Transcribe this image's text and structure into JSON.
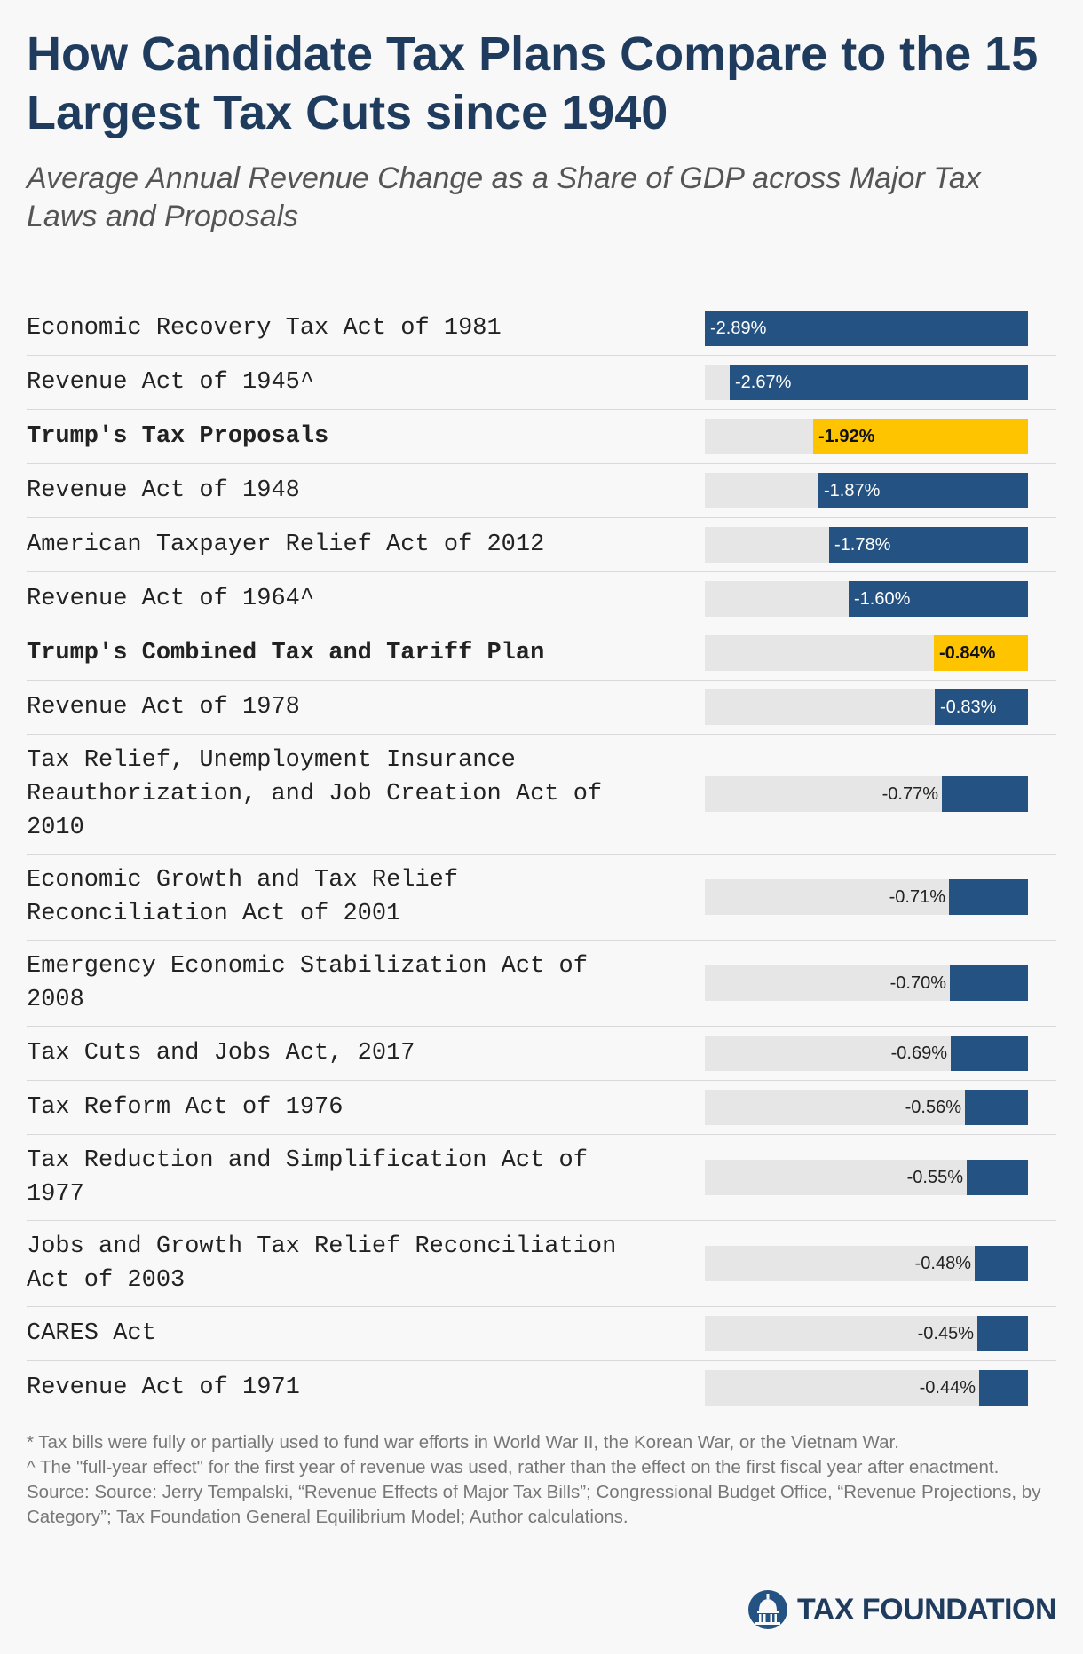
{
  "title": "How Candidate Tax Plans Compare to the 15 Largest Tax Cuts since 1940",
  "subtitle": "Average Annual Revenue Change as a Share of GDP across Major Tax Laws and Proposals",
  "colors": {
    "bar": "#245282",
    "highlight": "#ffc400",
    "track": "#e6e6e6",
    "title": "#1f3c5e"
  },
  "chart_data": {
    "type": "bar",
    "orientation": "horizontal",
    "xlim": [
      -2.89,
      0
    ],
    "categories": [
      "Economic Recovery Tax Act of 1981",
      "Revenue Act of 1945^",
      "Trump's Tax Proposals",
      "Revenue Act of 1948",
      "American Taxpayer Relief Act of 2012",
      "Revenue Act of 1964^",
      "Trump's Combined Tax and Tariff Plan",
      "Revenue Act of 1978",
      "Tax Relief, Unemployment Insurance Reauthorization, and Job Creation Act of 2010",
      "Economic Growth and Tax Relief Reconciliation Act of 2001",
      "Emergency Economic Stabilization Act of 2008",
      "Tax Cuts and Jobs Act, 2017",
      "Tax Reform Act of 1976",
      "Tax Reduction and Simplification Act of 1977",
      "Jobs and Growth Tax Relief Reconciliation Act of 2003",
      "CARES Act",
      "Revenue Act of 1971"
    ],
    "values": [
      -2.89,
      -2.67,
      -1.92,
      -1.87,
      -1.78,
      -1.6,
      -0.84,
      -0.83,
      -0.77,
      -0.71,
      -0.7,
      -0.69,
      -0.56,
      -0.55,
      -0.48,
      -0.45,
      -0.44
    ],
    "labels": [
      "-2.89%",
      "-2.67%",
      "-1.92%",
      "-1.87%",
      "-1.78%",
      "-1.60%",
      "-0.84%",
      "-0.83%",
      "-0.77%",
      "-0.71%",
      "-0.70%",
      "-0.69%",
      "-0.56%",
      "-0.55%",
      "-0.48%",
      "-0.45%",
      "-0.44%"
    ],
    "highlighted": [
      false,
      false,
      true,
      false,
      false,
      false,
      true,
      false,
      false,
      false,
      false,
      false,
      false,
      false,
      false,
      false,
      false
    ]
  },
  "footnotes": [
    "* Tax bills were fully or partially used to fund war efforts in World War II, the Korean War, or the Vietnam War.",
    "^ The \"full-year effect\" for the first year of revenue was used, rather than the effect on the first fiscal year after enactment.",
    "Source: Source: Jerry Tempalski, “Revenue Effects of Major Tax Bills”; Congressional Budget Office, “Revenue Projections, by Category”; Tax Foundation General Equilibrium Model; Author calculations."
  ],
  "logo": {
    "text": "TAX FOUNDATION",
    "icon": "capitol-dome-icon"
  }
}
